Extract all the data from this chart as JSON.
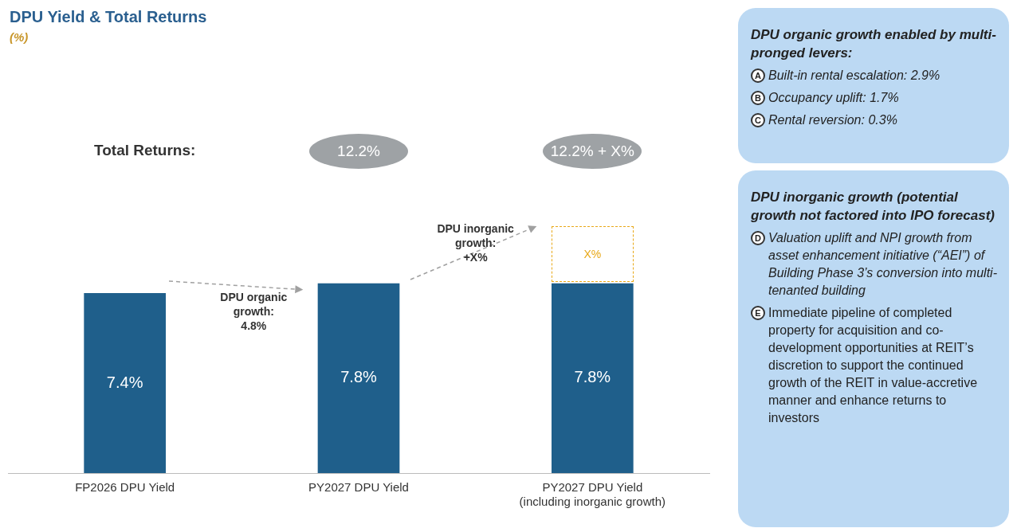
{
  "chart_data": [
    {
      "type": "bar",
      "title": "DPU Yield & Total Returns",
      "subtitle": "(%)",
      "categories": [
        "FP2026 DPU Yield",
        "PY2027 DPU Yield",
        "PY2027 DPU Yield\n(including inorganic growth)"
      ],
      "values": [
        7.4,
        7.8,
        7.8
      ],
      "value_labels": [
        "7.4%",
        "7.8%",
        "7.8%"
      ],
      "color": "#1f5f8b",
      "grid": false,
      "legend": false,
      "annotations": [
        "Total Returns:",
        "12.2%",
        "12.2% + X%",
        "DPU organic growth:\n4.8%",
        "DPU inorganic growth:\n+X%",
        "X%"
      ]
    },
    {
      "type": "other",
      "title": "DPU organic growth enabled by multi-pronged levers:",
      "annotations": [
        "A",
        "Built-in rental escalation: 2.9%",
        "B",
        "Occupancy uplift: 1.7%",
        "C",
        "Rental reversion: 0.3%"
      ]
    },
    {
      "type": "other",
      "title": "DPU inorganic growth (potential growth not factored into IPO forecast)",
      "annotations": [
        "D",
        "Valuation uplift and NPI growth from asset enhancement initiative (“AEI”) of Building Phase 3’s conversion into multi-tenanted building",
        "E",
        "Immediate pipeline of completed property for acquisition and co-development opportunities at REIT’s discretion to support the continued growth of the REIT in value-accretive manner and enhance returns to investors"
      ]
    }
  ]
}
